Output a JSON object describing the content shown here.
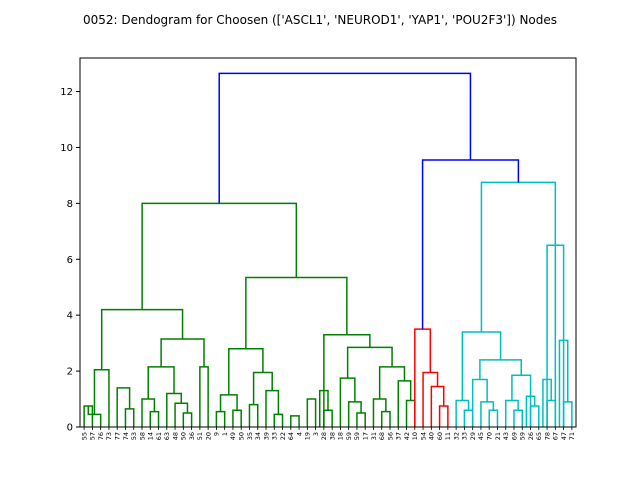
{
  "chart_data": {
    "type": "dendrogram",
    "title": "0052: Dendogram for Choosen (['ASCL1', 'NEUROD1', 'YAP1', 'POU2F3']) Nodes",
    "xlabel": "",
    "ylabel": "",
    "ylim": [
      0,
      13.2
    ],
    "yticks": [
      0,
      2,
      4,
      6,
      8,
      10,
      12
    ],
    "grid": false,
    "colors": {
      "green": "#008000",
      "red": "#ff0000",
      "cyan": "#00bfbf",
      "blue": "#0000ff"
    },
    "leaves": [
      "55",
      "57",
      "76",
      "73",
      "77",
      "74",
      "53",
      "58",
      "14",
      "61",
      "63",
      "48",
      "50",
      "36",
      "51",
      "20",
      "9",
      "1",
      "49",
      "50",
      "35",
      "34",
      "39",
      "33",
      "22",
      "64",
      "4",
      "19",
      "3",
      "28",
      "38",
      "18",
      "59",
      "59",
      "17",
      "31",
      "68",
      "56",
      "37",
      "42",
      "10",
      "54",
      "40",
      "60",
      "11",
      "32",
      "33",
      "29",
      "45",
      "70",
      "21",
      "43",
      "69",
      "59",
      "26",
      "65",
      "78",
      "67",
      "47",
      "71"
    ],
    "links": [
      {
        "c": "green",
        "x": [
          0,
          1
        ],
        "h": 0.75
      },
      {
        "c": "green",
        "x": [
          0.5,
          2
        ],
        "h": 0.45
      },
      {
        "c": "green",
        "x": [
          1.25,
          3
        ],
        "h": 2.05
      },
      {
        "c": "green",
        "x": [
          5,
          6
        ],
        "h": 0.65
      },
      {
        "c": "green",
        "x": [
          4,
          5.5
        ],
        "h": 1.4
      },
      {
        "c": "green",
        "x": [
          8,
          9
        ],
        "h": 0.55
      },
      {
        "c": "green",
        "x": [
          7,
          8.5
        ],
        "h": 1.0
      },
      {
        "c": "green",
        "x": [
          12,
          13
        ],
        "h": 0.5
      },
      {
        "c": "green",
        "x": [
          11,
          12.5
        ],
        "h": 0.85
      },
      {
        "c": "green",
        "x": [
          10,
          11.75
        ],
        "h": 1.2
      },
      {
        "c": "green",
        "x": [
          7.75,
          10.875
        ],
        "h": 2.15
      },
      {
        "c": "green",
        "x": [
          14,
          15
        ],
        "h": 2.15
      },
      {
        "c": "green",
        "x": [
          9.3125,
          14.5
        ],
        "h": 3.15
      },
      {
        "c": "green",
        "x": [
          2.125,
          11.90625
        ],
        "h": 4.2
      },
      {
        "c": "green",
        "x": [
          16,
          17
        ],
        "h": 0.55
      },
      {
        "c": "green",
        "x": [
          18,
          19
        ],
        "h": 0.6
      },
      {
        "c": "green",
        "x": [
          16.5,
          18.5
        ],
        "h": 1.15
      },
      {
        "c": "green",
        "x": [
          20,
          21
        ],
        "h": 0.8
      },
      {
        "c": "green",
        "x": [
          23,
          24
        ],
        "h": 0.45
      },
      {
        "c": "green",
        "x": [
          22,
          23.5
        ],
        "h": 1.3
      },
      {
        "c": "green",
        "x": [
          20.5,
          22.75
        ],
        "h": 1.95
      },
      {
        "c": "green",
        "x": [
          17.5,
          21.625
        ],
        "h": 2.8
      },
      {
        "c": "green",
        "x": [
          25,
          26
        ],
        "h": 0.4
      },
      {
        "c": "green",
        "x": [
          27,
          28
        ],
        "h": 1.0
      },
      {
        "c": "green",
        "x": [
          29,
          30
        ],
        "h": 0.6
      },
      {
        "c": "green",
        "x": [
          28.5,
          29.5
        ],
        "h": 1.3
      },
      {
        "c": "green",
        "x": [
          33,
          34
        ],
        "h": 0.5
      },
      {
        "c": "green",
        "x": [
          32,
          33.5
        ],
        "h": 0.9
      },
      {
        "c": "green",
        "x": [
          31,
          32.75
        ],
        "h": 1.75
      },
      {
        "c": "green",
        "x": [
          36,
          37
        ],
        "h": 0.55
      },
      {
        "c": "green",
        "x": [
          35,
          36.5
        ],
        "h": 1.0
      },
      {
        "c": "green",
        "x": [
          39,
          40
        ],
        "h": 0.95
      },
      {
        "c": "green",
        "x": [
          38,
          39.5
        ],
        "h": 1.65
      },
      {
        "c": "green",
        "x": [
          35.75,
          38.75
        ],
        "h": 2.15
      },
      {
        "c": "green",
        "x": [
          31.875,
          37.25
        ],
        "h": 2.85
      },
      {
        "c": "green",
        "x": [
          29,
          34.5625
        ],
        "h": 3.3
      },
      {
        "c": "green",
        "x": [
          19.5625,
          31.78
        ],
        "h": 5.35
      },
      {
        "c": "green",
        "x": [
          7.0156,
          25.67
        ],
        "h": 8.0
      },
      {
        "c": "red",
        "x": [
          43,
          44
        ],
        "h": 0.75
      },
      {
        "c": "red",
        "x": [
          42,
          43.5
        ],
        "h": 1.45
      },
      {
        "c": "red",
        "x": [
          41,
          42.75
        ],
        "h": 1.95
      },
      {
        "c": "red",
        "x": [
          40,
          41.875
        ],
        "h": 3.5
      },
      {
        "c": "cyan",
        "x": [
          46,
          47
        ],
        "h": 0.6
      },
      {
        "c": "cyan",
        "x": [
          45,
          46.5
        ],
        "h": 0.95
      },
      {
        "c": "cyan",
        "x": [
          49,
          50
        ],
        "h": 0.6
      },
      {
        "c": "cyan",
        "x": [
          48,
          49.5
        ],
        "h": 0.9
      },
      {
        "c": "cyan",
        "x": [
          47,
          48.75
        ],
        "h": 1.7
      },
      {
        "c": "cyan",
        "x": [
          52,
          53
        ],
        "h": 0.6
      },
      {
        "c": "cyan",
        "x": [
          51,
          52.5
        ],
        "h": 0.95
      },
      {
        "c": "cyan",
        "x": [
          54,
          55
        ],
        "h": 0.75
      },
      {
        "c": "cyan",
        "x": [
          53.5,
          54.5
        ],
        "h": 1.1
      },
      {
        "c": "cyan",
        "x": [
          51.75,
          54
        ],
        "h": 1.85
      },
      {
        "c": "cyan",
        "x": [
          47.875,
          52.875
        ],
        "h": 2.4
      },
      {
        "c": "cyan",
        "x": [
          45.75,
          50.375
        ],
        "h": 3.4
      },
      {
        "c": "cyan",
        "x": [
          56,
          57
        ],
        "h": 0.95
      },
      {
        "c": "cyan",
        "x": [
          55.5,
          56.5
        ],
        "h": 1.7
      },
      {
        "c": "cyan",
        "x": [
          58,
          59
        ],
        "h": 0.9
      },
      {
        "c": "cyan",
        "x": [
          57.5,
          58.5
        ],
        "h": 3.1
      },
      {
        "c": "cyan",
        "x": [
          56,
          58
        ],
        "h": 6.5
      },
      {
        "c": "cyan",
        "x": [
          48.06,
          57
        ],
        "h": 8.75
      },
      {
        "c": "blue",
        "x": [
          40.94,
          52.53
        ],
        "h": 9.55
      },
      {
        "c": "blue",
        "x": [
          16.34,
          46.73
        ],
        "h": 12.65
      }
    ]
  }
}
